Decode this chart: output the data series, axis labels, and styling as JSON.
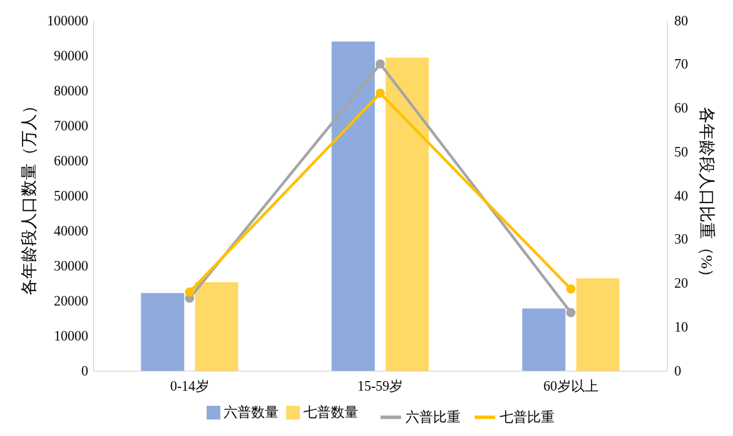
{
  "chart_data": {
    "type": "bar",
    "categories": [
      "0-14岁",
      "15-59岁",
      "60岁以上"
    ],
    "ylabel": "各年龄段人口数量（万人）",
    "y2label": "各年龄段人口比重（%）",
    "ylim": [
      0,
      100000
    ],
    "yticks": [
      0,
      10000,
      20000,
      30000,
      40000,
      50000,
      60000,
      70000,
      80000,
      90000,
      100000
    ],
    "y2lim": [
      0,
      80
    ],
    "y2ticks": [
      0,
      10,
      20,
      30,
      40,
      50,
      60,
      70,
      80
    ],
    "legend": "bottom",
    "grid": false,
    "marker": "circle",
    "series": [
      {
        "name": "六普数量",
        "color": "#8faadc",
        "values": [
          22200,
          94000,
          17800
        ]
      },
      {
        "name": "七普数量",
        "color": "#ffd966",
        "values": [
          25300,
          89400,
          26400
        ]
      },
      {
        "name": "六普比重",
        "type": "line",
        "axis": "y2",
        "color": "#a5a5a5",
        "values": [
          16.6,
          70.1,
          13.3
        ]
      },
      {
        "name": "七普比重",
        "type": "line",
        "axis": "y2",
        "color": "#ffc000",
        "values": [
          18.0,
          63.4,
          18.7
        ]
      }
    ]
  }
}
